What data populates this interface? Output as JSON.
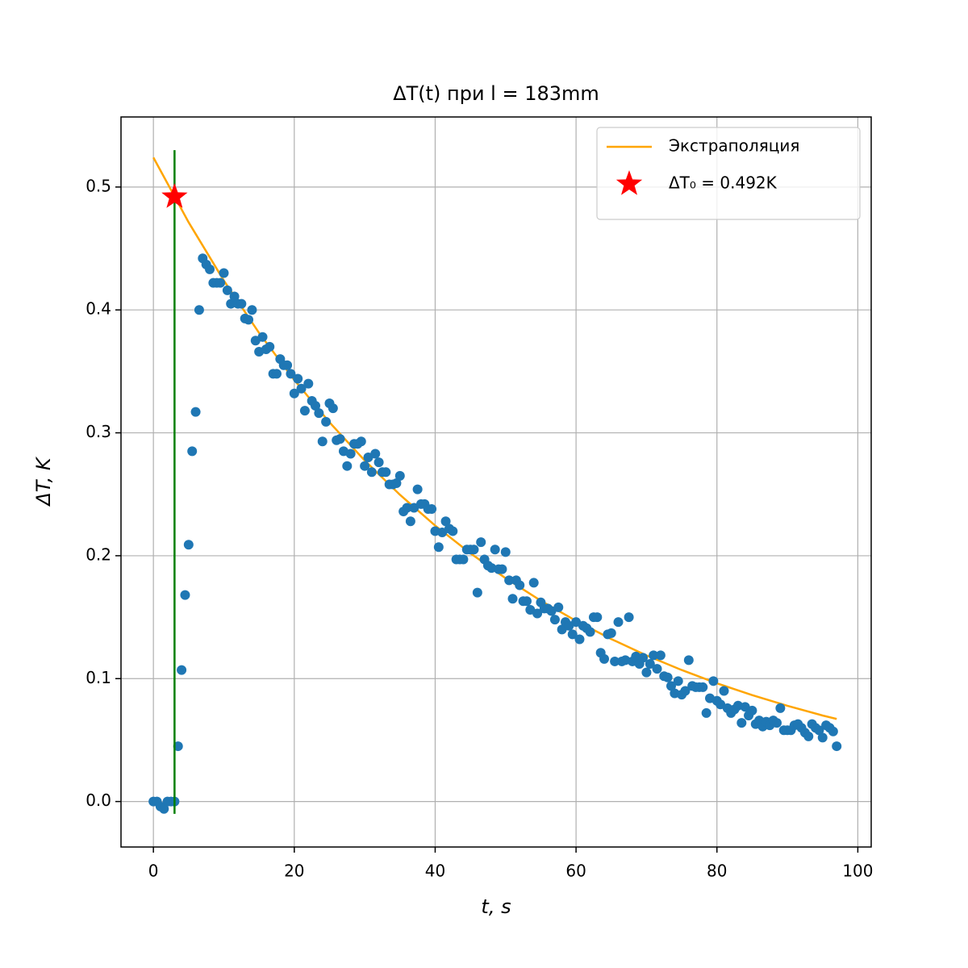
{
  "chart_data": {
    "type": "scatter",
    "title": "ΔT(t) при l = 183mm",
    "x_label": "t, s",
    "y_label": "ΔT, K",
    "xlim": [
      -4.6,
      101.9
    ],
    "ylim": [
      -0.037,
      0.557
    ],
    "xticks": [
      0,
      20,
      40,
      60,
      80,
      100
    ],
    "yticks": [
      {
        "value": 0,
        "label": "0.0"
      },
      0.1,
      0.2,
      0.3,
      0.4,
      0.5
    ],
    "grid": true,
    "legend": "upper right",
    "series": [
      {
        "name": "Экстраполяция",
        "type": "line",
        "color": "#ffa500",
        "x": [
          0,
          5,
          10,
          15,
          20,
          25,
          30,
          35,
          40,
          45,
          50,
          55,
          60,
          65,
          70,
          75,
          80,
          85,
          90,
          95,
          97
        ],
        "values": [
          0.524,
          0.4713,
          0.4239,
          0.3813,
          0.343,
          0.3085,
          0.2775,
          0.2496,
          0.2245,
          0.202,
          0.1817,
          0.1634,
          0.147,
          0.1322,
          0.1189,
          0.107,
          0.0962,
          0.0866,
          0.0779,
          0.07,
          0.0672
        ]
      },
      {
        "name": "ΔT₀ = 0.492K",
        "type": "star",
        "color": "#ff0000",
        "x": [
          3
        ],
        "values": [
          0.492
        ]
      },
      {
        "type": "line",
        "color": "#008000",
        "x": [
          3,
          3
        ],
        "values": [
          -0.01,
          0.53
        ]
      },
      {
        "type": "scatter",
        "color": "#1f77b4",
        "x": [
          0,
          0.5,
          1,
          1.5,
          2,
          2.5,
          3,
          3.5,
          4,
          4.5,
          5,
          5.5,
          6,
          6.5,
          7,
          7.5,
          8,
          8.5,
          9,
          9.5,
          10,
          10.5,
          11,
          11.5,
          12,
          12.5,
          13,
          13.5,
          14,
          14.5,
          15,
          15.5,
          16,
          16.5,
          17,
          17.5,
          18,
          18.5,
          19,
          19.5,
          20,
          20.5,
          21,
          21.5,
          22,
          22.5,
          23,
          23.5,
          24,
          24.5,
          25,
          25.5,
          26,
          26.5,
          27,
          27.5,
          28,
          28.5,
          29,
          29.5,
          30,
          30.5,
          31,
          31.5,
          32,
          32.5,
          33,
          33.5,
          34,
          34.5,
          35,
          35.5,
          36,
          36.5,
          37,
          37.5,
          38,
          38.5,
          39,
          39.5,
          40,
          40.5,
          41,
          41.5,
          42,
          42.5,
          43,
          43.5,
          44,
          44.5,
          45,
          45.5,
          46,
          46.5,
          47,
          47.5,
          48,
          48.5,
          49,
          49.5,
          50,
          50.5,
          51,
          51.5,
          52,
          52.5,
          53,
          53.5,
          54,
          54.5,
          55,
          55.5,
          56,
          56.5,
          57,
          57.5,
          58,
          58.5,
          59,
          59.5,
          60,
          60.5,
          61,
          61.5,
          62,
          62.5,
          63,
          63.5,
          64,
          64.5,
          65,
          65.5,
          66,
          66.5,
          67,
          67.5,
          68,
          68.5,
          69,
          69.5,
          70,
          70.5,
          71,
          71.5,
          72,
          72.5,
          73,
          73.5,
          74,
          74.5,
          75,
          75.5,
          76,
          76.5,
          77,
          77.5,
          78,
          78.5,
          79,
          79.5,
          80,
          80.5,
          81,
          81.5,
          82,
          82.5,
          83,
          83.5,
          84,
          84.5,
          85,
          85.5,
          86,
          86.5,
          87,
          87.5,
          88,
          88.5,
          89,
          89.5,
          90,
          90.5,
          91,
          91.5,
          92,
          92.5,
          93,
          93.5,
          94,
          94.5,
          95,
          95.5,
          96,
          96.5,
          97
        ],
        "values": [
          0,
          0,
          -0.004,
          -0.006,
          0,
          0,
          0,
          0.045,
          0.107,
          0.168,
          0.209,
          0.285,
          0.317,
          0.4,
          0.442,
          0.437,
          0.433,
          0.422,
          0.422,
          0.422,
          0.43,
          0.416,
          0.405,
          0.411,
          0.405,
          0.405,
          0.393,
          0.392,
          0.4,
          0.375,
          0.366,
          0.378,
          0.368,
          0.37,
          0.348,
          0.348,
          0.36,
          0.355,
          0.355,
          0.348,
          0.332,
          0.344,
          0.336,
          0.318,
          0.34,
          0.326,
          0.322,
          0.316,
          0.293,
          0.309,
          0.324,
          0.32,
          0.294,
          0.295,
          0.285,
          0.273,
          0.283,
          0.291,
          0.291,
          0.293,
          0.273,
          0.28,
          0.268,
          0.283,
          0.276,
          0.268,
          0.268,
          0.258,
          0.258,
          0.259,
          0.265,
          0.236,
          0.239,
          0.228,
          0.239,
          0.254,
          0.242,
          0.242,
          0.238,
          0.238,
          0.22,
          0.207,
          0.219,
          0.228,
          0.222,
          0.22,
          0.197,
          0.197,
          0.197,
          0.205,
          0.205,
          0.205,
          0.17,
          0.211,
          0.197,
          0.192,
          0.19,
          0.205,
          0.189,
          0.189,
          0.203,
          0.18,
          0.165,
          0.18,
          0.176,
          0.163,
          0.163,
          0.156,
          0.178,
          0.153,
          0.162,
          0.157,
          0.157,
          0.155,
          0.148,
          0.158,
          0.14,
          0.146,
          0.143,
          0.136,
          0.146,
          0.132,
          0.143,
          0.141,
          0.138,
          0.15,
          0.15,
          0.121,
          0.116,
          0.136,
          0.137,
          0.114,
          0.146,
          0.114,
          0.115,
          0.15,
          0.114,
          0.118,
          0.112,
          0.117,
          0.105,
          0.112,
          0.119,
          0.108,
          0.119,
          0.102,
          0.101,
          0.094,
          0.088,
          0.098,
          0.087,
          0.09,
          0.115,
          0.094,
          0.093,
          0.093,
          0.093,
          0.072,
          0.084,
          0.098,
          0.082,
          0.079,
          0.09,
          0.076,
          0.072,
          0.075,
          0.078,
          0.064,
          0.077,
          0.07,
          0.074,
          0.063,
          0.066,
          0.061,
          0.065,
          0.062,
          0.066,
          0.064,
          0.076,
          0.058,
          0.058,
          0.058,
          0.062,
          0.063,
          0.06,
          0.056,
          0.053,
          0.063,
          0.06,
          0.058,
          0.052,
          0.062,
          0.06,
          0.057,
          0.045
        ]
      }
    ]
  }
}
